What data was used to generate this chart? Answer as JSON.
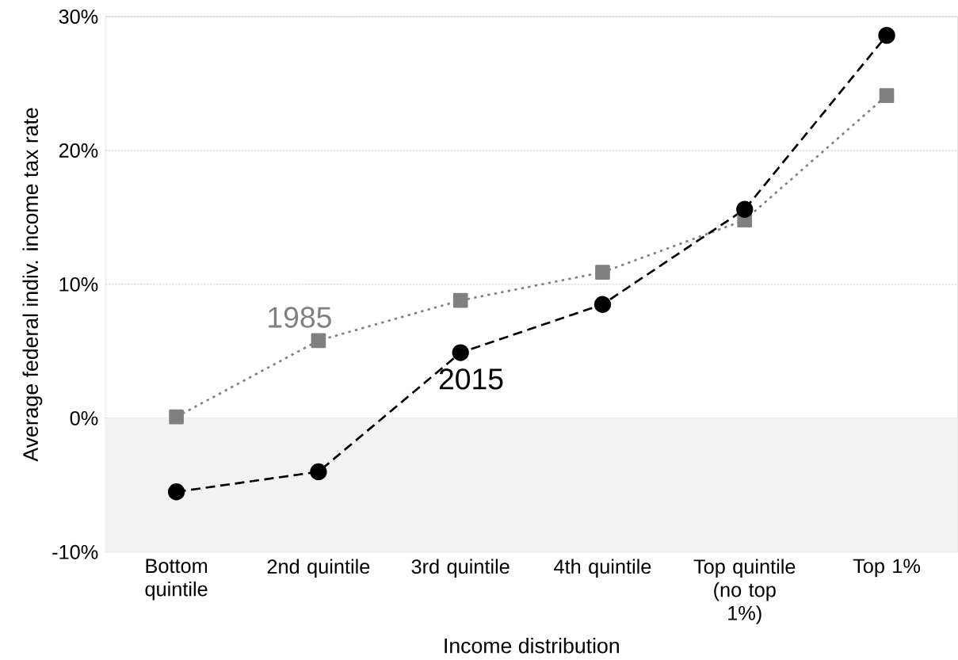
{
  "chart_data": {
    "type": "line",
    "xlabel": "Income distribution",
    "ylabel": "Average federal indiv. income tax rate",
    "categories": [
      "Bottom quintile",
      "2nd quintile",
      "3rd quintile",
      "4th quintile",
      "Top quintile (no top 1%)",
      "Top 1%"
    ],
    "series": [
      {
        "name": "1985",
        "color": "#808080",
        "line_style": "dotted",
        "marker": "square",
        "values": [
          0.1,
          5.8,
          8.8,
          10.9,
          14.8,
          24.1
        ]
      },
      {
        "name": "2015",
        "color": "#000000",
        "line_style": "dashed",
        "marker": "circle",
        "values": [
          -5.5,
          -4.0,
          4.9,
          8.5,
          15.6,
          28.6
        ]
      }
    ],
    "ylim": [
      -10,
      30
    ],
    "yticks": [
      {
        "value": -10,
        "label": "-10%"
      },
      {
        "value": 0,
        "label": "0%"
      },
      {
        "value": 10,
        "label": "10%"
      },
      {
        "value": 20,
        "label": "20%"
      },
      {
        "value": 30,
        "label": "30%"
      }
    ],
    "bands": [
      {
        "axis": "y",
        "from": -10,
        "to": 0,
        "color": "#f2f2f2"
      }
    ],
    "grid": "y"
  }
}
